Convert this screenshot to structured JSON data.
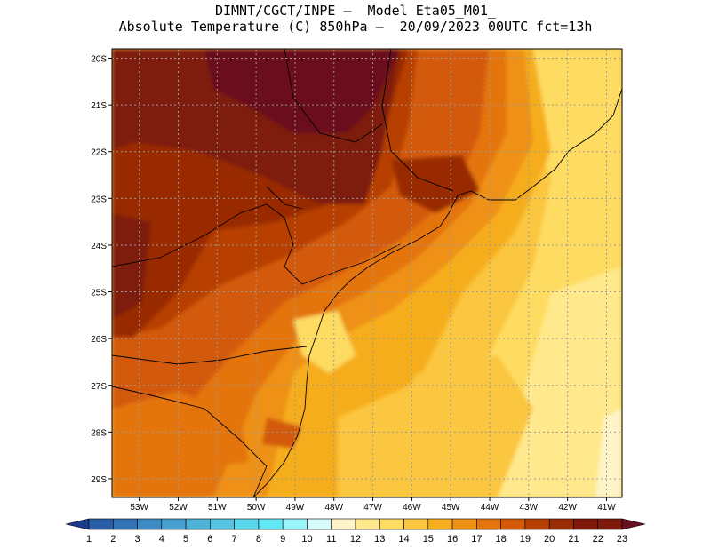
{
  "header": {
    "line1": "DIMNT/CGCT/INPE –  Model Eta05_M01_",
    "line2": "Absolute Temperature (C) 850hPa –  20/09/2023 00UTC fct=13h"
  },
  "map": {
    "lat_labels": [
      "20S",
      "21S",
      "22S",
      "23S",
      "24S",
      "25S",
      "26S",
      "27S",
      "28S",
      "29S"
    ],
    "lon_labels": [
      "53W",
      "52W",
      "51W",
      "50W",
      "49W",
      "48W",
      "47W",
      "46W",
      "45W",
      "44W",
      "43W",
      "42W",
      "41W"
    ],
    "lat_values": [
      -20,
      -21,
      -22,
      -23,
      -24,
      -25,
      -26,
      -27,
      -28,
      -29
    ],
    "lon_values": [
      -53,
      -52,
      -51,
      -50,
      -49,
      -48,
      -47,
      -46,
      -45,
      -44,
      -43,
      -42,
      -41
    ],
    "extent": {
      "lon_min": -53.7,
      "lon_max": -40.6,
      "lat_max": -19.8,
      "lat_min": -29.4
    },
    "variable": "Absolute Temperature (C) 850hPa",
    "gridlines": "dotted"
  },
  "colorbar": {
    "labels": [
      "1",
      "2",
      "3",
      "4",
      "5",
      "6",
      "7",
      "8",
      "9",
      "10",
      "11",
      "12",
      "13",
      "14",
      "15",
      "16",
      "17",
      "18",
      "19",
      "20",
      "21",
      "22",
      "23"
    ],
    "colors": [
      "#1b3a8c",
      "#2a5ea6",
      "#3473b5",
      "#3d8cc4",
      "#47a0cf",
      "#4fb3d8",
      "#54c4e0",
      "#5ad6ea",
      "#61e8f4",
      "#9af5fa",
      "#d8fbfb",
      "#fff4c8",
      "#ffe98c",
      "#fedc62",
      "#fbc640",
      "#f6ad1e",
      "#ee9112",
      "#e4750c",
      "#d35a07",
      "#b74005",
      "#992b06",
      "#7e1a0b",
      "#6a0f1e"
    ]
  }
}
